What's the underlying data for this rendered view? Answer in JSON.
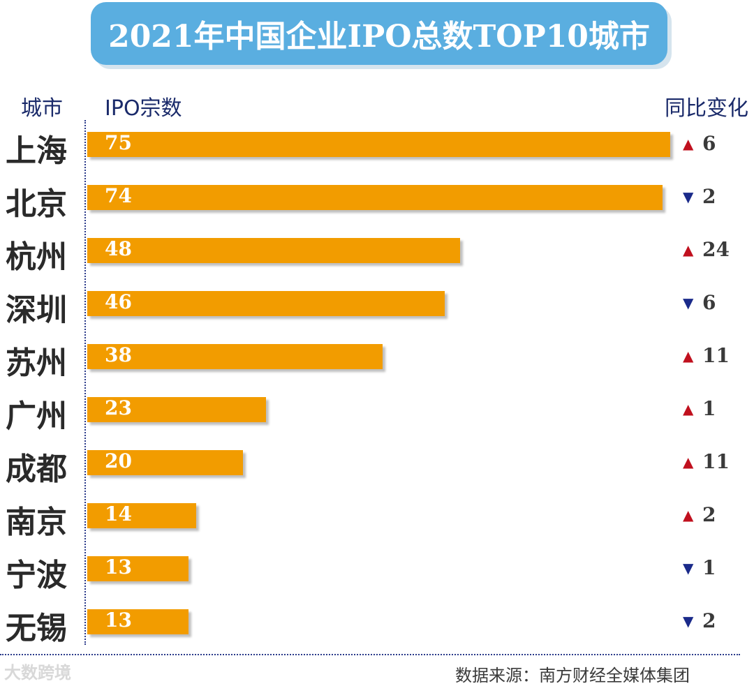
{
  "title": "2021年中国企业IPO总数TOP10城市",
  "headers": {
    "city": "城市",
    "count": "IPO宗数",
    "change": "同比变化"
  },
  "colors": {
    "bar": "#f29c00",
    "up": "#c0101e",
    "down": "#1a2a8a",
    "title_bg": "#5aaee0"
  },
  "chart_data": {
    "type": "bar",
    "orientation": "horizontal",
    "title": "2021年中国企业IPO总数TOP10城市",
    "categories": [
      "上海",
      "北京",
      "杭州",
      "深圳",
      "苏州",
      "广州",
      "成都",
      "南京",
      "宁波",
      "无锡"
    ],
    "values": [
      75,
      74,
      48,
      46,
      38,
      23,
      20,
      14,
      13,
      13
    ],
    "change_direction": [
      "up",
      "down",
      "up",
      "down",
      "up",
      "up",
      "up",
      "up",
      "down",
      "down"
    ],
    "change_values": [
      6,
      2,
      24,
      6,
      11,
      1,
      11,
      2,
      1,
      2
    ],
    "xlim": [
      0,
      75
    ]
  },
  "watermark": "大数跨境",
  "source": "数据来源：南方财经全媒体集团"
}
